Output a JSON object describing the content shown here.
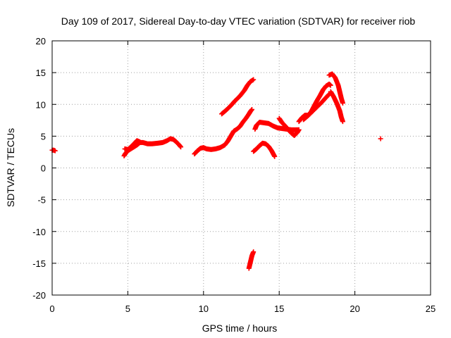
{
  "chart_data": {
    "type": "scatter",
    "title": "Day 109 of 2017, Sidereal Day-to-day VTEC variation (SDTVAR) for receiver riob",
    "xlabel": "GPS time / hours",
    "ylabel": "SDTVAR / TECUs",
    "xlim": [
      0,
      25
    ],
    "ylim": [
      -20,
      20
    ],
    "xticks": [
      0,
      5,
      10,
      15,
      20,
      25
    ],
    "yticks": [
      -20,
      -15,
      -10,
      -5,
      0,
      5,
      10,
      15,
      20
    ],
    "grid": true,
    "marker": "plus",
    "color": "#ff0000",
    "series": [
      {
        "segments": [
          [
            [
              0.0,
              2.8
            ],
            [
              0.1,
              2.8
            ],
            [
              0.2,
              2.7
            ]
          ],
          [
            [
              4.75,
              1.9
            ],
            [
              4.85,
              2.3
            ],
            [
              5.0,
              2.7
            ],
            [
              5.2,
              3.0
            ],
            [
              5.4,
              3.3
            ],
            [
              5.6,
              3.6
            ],
            [
              5.8,
              4.0
            ],
            [
              6.0,
              4.0
            ],
            [
              6.3,
              3.8
            ],
            [
              6.6,
              3.8
            ],
            [
              7.0,
              3.9
            ],
            [
              7.3,
              4.0
            ],
            [
              7.6,
              4.3
            ],
            [
              7.8,
              4.6
            ],
            [
              8.0,
              4.5
            ],
            [
              8.2,
              4.1
            ],
            [
              8.4,
              3.6
            ],
            [
              8.5,
              3.3
            ]
          ],
          [
            [
              4.8,
              3.0
            ],
            [
              5.0,
              2.9
            ],
            [
              5.2,
              3.3
            ],
            [
              5.4,
              3.8
            ],
            [
              5.6,
              4.3
            ],
            [
              5.8,
              4.1
            ]
          ],
          [
            [
              9.4,
              2.2
            ],
            [
              9.6,
              2.7
            ],
            [
              9.8,
              3.1
            ],
            [
              10.0,
              3.2
            ],
            [
              10.2,
              3.0
            ],
            [
              10.5,
              2.9
            ],
            [
              10.8,
              3.0
            ],
            [
              11.1,
              3.2
            ],
            [
              11.4,
              3.6
            ],
            [
              11.6,
              4.2
            ],
            [
              11.8,
              5.0
            ],
            [
              12.0,
              5.8
            ],
            [
              12.2,
              6.1
            ],
            [
              12.4,
              6.5
            ],
            [
              12.6,
              7.2
            ],
            [
              12.8,
              7.8
            ],
            [
              13.0,
              8.5
            ],
            [
              13.1,
              8.9
            ],
            [
              13.2,
              9.2
            ]
          ],
          [
            [
              11.2,
              8.5
            ],
            [
              11.5,
              9.1
            ],
            [
              11.8,
              9.8
            ],
            [
              12.1,
              10.6
            ],
            [
              12.4,
              11.3
            ],
            [
              12.7,
              12.2
            ],
            [
              12.9,
              13.0
            ],
            [
              13.1,
              13.6
            ],
            [
              13.3,
              13.9
            ]
          ],
          [
            [
              13.0,
              -15.8
            ],
            [
              13.05,
              -15.3
            ],
            [
              13.1,
              -14.8
            ],
            [
              13.15,
              -14.3
            ],
            [
              13.2,
              -13.8
            ],
            [
              13.3,
              -13.2
            ]
          ],
          [
            [
              13.3,
              2.6
            ],
            [
              13.5,
              3.0
            ],
            [
              13.7,
              3.5
            ],
            [
              13.9,
              3.9
            ],
            [
              14.1,
              3.8
            ],
            [
              14.3,
              3.4
            ],
            [
              14.5,
              2.7
            ],
            [
              14.7,
              1.8
            ]
          ],
          [
            [
              13.4,
              6.1
            ],
            [
              13.5,
              6.7
            ],
            [
              13.7,
              7.2
            ],
            [
              14.0,
              7.1
            ],
            [
              14.3,
              7.0
            ],
            [
              14.6,
              6.6
            ],
            [
              14.9,
              6.3
            ],
            [
              15.2,
              6.2
            ],
            [
              15.5,
              6.1
            ],
            [
              15.8,
              6.0
            ],
            [
              16.1,
              6.0
            ],
            [
              16.3,
              6.0
            ]
          ],
          [
            [
              15.0,
              7.8
            ],
            [
              15.2,
              7.1
            ],
            [
              15.4,
              6.6
            ],
            [
              15.6,
              6.0
            ],
            [
              15.8,
              5.5
            ],
            [
              16.0,
              5.1
            ],
            [
              16.2,
              5.6
            ],
            [
              16.3,
              6.0
            ]
          ],
          [
            [
              16.3,
              7.3
            ],
            [
              16.5,
              7.9
            ],
            [
              16.7,
              8.3
            ],
            [
              16.9,
              8.3
            ],
            [
              17.1,
              8.8
            ],
            [
              17.3,
              9.7
            ],
            [
              17.5,
              10.6
            ],
            [
              17.7,
              11.4
            ],
            [
              17.9,
              12.3
            ],
            [
              18.1,
              12.9
            ],
            [
              18.3,
              13.2
            ],
            [
              18.4,
              13.0
            ]
          ],
          [
            [
              16.6,
              7.6
            ],
            [
              16.9,
              8.2
            ],
            [
              17.2,
              8.9
            ],
            [
              17.5,
              9.6
            ],
            [
              17.8,
              10.3
            ],
            [
              18.1,
              11.1
            ],
            [
              18.3,
              11.6
            ]
          ],
          [
            [
              18.3,
              14.6
            ],
            [
              18.5,
              14.8
            ],
            [
              18.7,
              14.2
            ],
            [
              18.9,
              13.0
            ],
            [
              19.0,
              12.0
            ],
            [
              19.1,
              11.0
            ],
            [
              19.2,
              10.2
            ]
          ],
          [
            [
              18.4,
              12.0
            ],
            [
              18.6,
              11.2
            ],
            [
              18.8,
              10.2
            ],
            [
              19.0,
              9.0
            ],
            [
              19.1,
              8.0
            ],
            [
              19.2,
              7.3
            ]
          ],
          [
            [
              21.7,
              4.6
            ]
          ]
        ]
      }
    ]
  }
}
